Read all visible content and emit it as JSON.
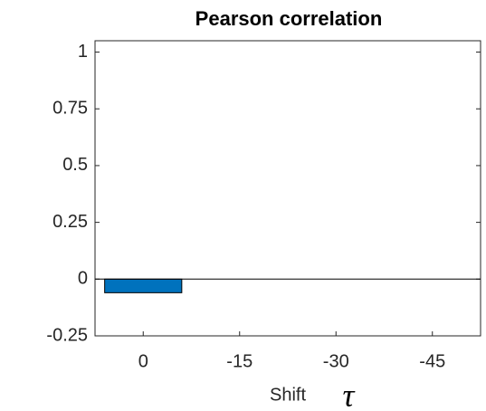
{
  "chart_data": {
    "type": "bar",
    "title": "Pearson correlation",
    "categories": [
      "0",
      "-15",
      "-30",
      "-45"
    ],
    "values": [
      -0.06,
      0,
      0,
      0
    ],
    "color": "#0072bd",
    "ylim": [
      -0.25,
      1.05
    ],
    "yticks": [
      -0.25,
      0,
      0.25,
      0.5,
      0.75,
      1
    ],
    "x_label": "Shift",
    "x_label_symbol": "τ",
    "grid": false
  }
}
